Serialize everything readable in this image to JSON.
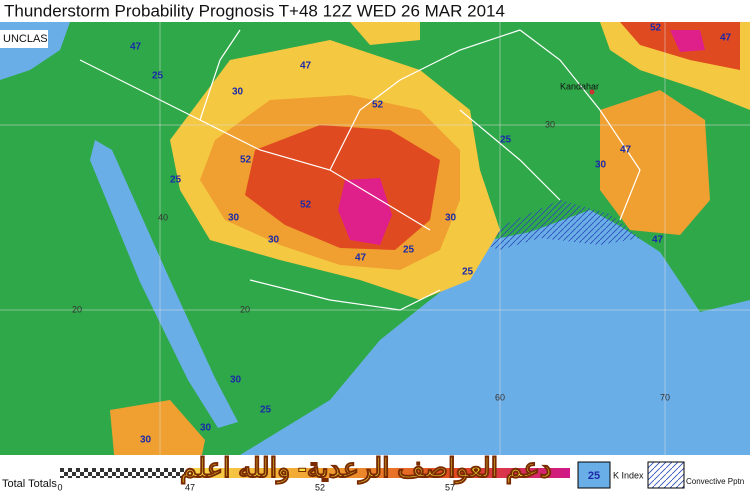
{
  "header": {
    "title": "Thunderstorm Probability Prognosis T+48 12Z WED 26 MAR 2014",
    "classification": "UNCLAS"
  },
  "places": [
    "Kandahar"
  ],
  "grid_labels": [
    40,
    20,
    20,
    60,
    70,
    30
  ],
  "contour_labels": [
    47,
    25,
    30,
    47,
    52,
    52,
    52,
    47,
    30,
    30,
    52,
    25,
    30,
    25,
    25,
    30,
    47,
    47,
    25,
    30,
    30,
    25,
    30,
    47
  ],
  "watermark": "دعم العواصف الرعدية- والله اعلم",
  "legend": {
    "scale_title": "Total Totals",
    "scale_ticks": [
      0,
      47,
      52,
      57
    ],
    "k_index_value": 25,
    "k_index_label": "K Index",
    "convective_label": "Convective Pptn"
  }
}
